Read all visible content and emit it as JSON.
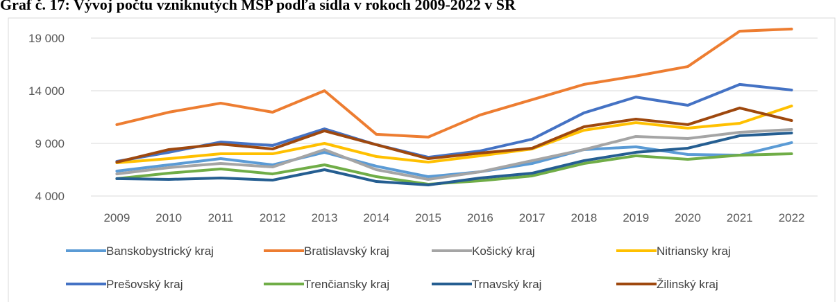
{
  "chart_data": {
    "type": "line",
    "title": "Graf č. 17: Vývoj počtu vzniknutých MSP podľa sídla v rokoch 2009-2022 v SR",
    "categories": [
      "2009",
      "2010",
      "2011",
      "2012",
      "2013",
      "2014",
      "2015",
      "2016",
      "2017",
      "2018",
      "2019",
      "2020",
      "2021",
      "2022"
    ],
    "ylim": [
      4000,
      20500
    ],
    "yticks": [
      {
        "value": 4000,
        "label": "4 000"
      },
      {
        "value": 9000,
        "label": "9 000"
      },
      {
        "value": 14000,
        "label": "14 000"
      },
      {
        "value": 19000,
        "label": "19 000"
      }
    ],
    "grid": true,
    "legend": "bottom",
    "series": [
      {
        "name": "Banskobystrický kraj",
        "color": "#5b9bd5",
        "values": [
          6370,
          6960,
          7550,
          6960,
          8150,
          6830,
          5840,
          6300,
          7090,
          8410,
          8670,
          7950,
          7880,
          9070
        ]
      },
      {
        "name": "Bratislavský kraj",
        "color": "#ed7d31",
        "values": [
          10780,
          11960,
          12820,
          11960,
          14000,
          9860,
          9600,
          11700,
          13150,
          14600,
          15400,
          16300,
          19660,
          19860
        ]
      },
      {
        "name": "Košický kraj",
        "color": "#a5a5a5",
        "values": [
          6100,
          6700,
          7090,
          6760,
          8410,
          6500,
          5580,
          6300,
          7360,
          8410,
          9660,
          9460,
          10050,
          10320
        ]
      },
      {
        "name": "Nitriansky kraj",
        "color": "#ffc000",
        "values": [
          7160,
          7550,
          8010,
          8010,
          9000,
          7750,
          7220,
          7820,
          8470,
          10250,
          10970,
          10450,
          10910,
          12550
        ]
      },
      {
        "name": "Prešovský kraj",
        "color": "#4472c4",
        "values": [
          7290,
          8150,
          9130,
          8800,
          10380,
          8870,
          7680,
          8280,
          9400,
          11900,
          13400,
          12620,
          14600,
          14070
        ]
      },
      {
        "name": "Trenčiansky kraj",
        "color": "#70ad47",
        "values": [
          5650,
          6170,
          6570,
          6100,
          6960,
          5840,
          5120,
          5450,
          5910,
          7090,
          7820,
          7490,
          7880,
          8010
        ]
      },
      {
        "name": "Trnavský kraj",
        "color": "#255e91",
        "values": [
          5650,
          5580,
          5710,
          5510,
          6500,
          5380,
          5050,
          5710,
          6170,
          7360,
          8150,
          8540,
          9730,
          9990
        ]
      },
      {
        "name": "Žilinský kraj",
        "color": "#9e480e",
        "values": [
          7220,
          8410,
          8930,
          8470,
          10190,
          8870,
          7550,
          8080,
          8540,
          10580,
          11300,
          10780,
          12360,
          11170
        ]
      }
    ]
  }
}
